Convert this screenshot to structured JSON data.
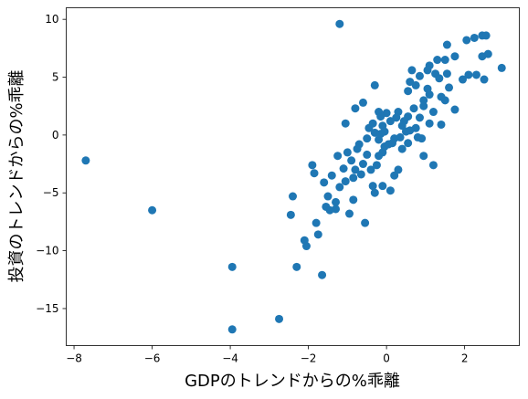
{
  "chart_data": {
    "type": "scatter",
    "xlabel": "GDPのトレンドからの%乖離",
    "ylabel": "投資のトレンドからの%乖離",
    "xlim": [
      -8.2,
      3.4
    ],
    "ylim": [
      -18.2,
      11.0
    ],
    "xticks": [
      -8,
      -6,
      -4,
      -2,
      0,
      2
    ],
    "yticks": [
      -15,
      -10,
      -5,
      0,
      5,
      10
    ],
    "x_tick_labels": [
      "−8",
      "−6",
      "−4",
      "−2",
      "0",
      "2"
    ],
    "y_tick_labels": [
      "−15",
      "−10",
      "−5",
      "0",
      "5",
      "10"
    ],
    "grid": false,
    "marker_color": "#1f77b4",
    "points": [
      [
        -7.7,
        -2.2
      ],
      [
        -6.0,
        -6.5
      ],
      [
        -3.95,
        -11.4
      ],
      [
        -3.95,
        -16.8
      ],
      [
        -2.75,
        -15.9
      ],
      [
        -2.3,
        -11.4
      ],
      [
        -1.65,
        -12.1
      ],
      [
        -1.2,
        9.6
      ],
      [
        2.95,
        5.8
      ],
      [
        2.6,
        7.0
      ],
      [
        2.45,
        8.6
      ],
      [
        2.55,
        8.6
      ],
      [
        2.25,
        8.4
      ],
      [
        2.05,
        8.2
      ],
      [
        1.75,
        6.8
      ],
      [
        1.55,
        7.8
      ],
      [
        1.5,
        6.5
      ],
      [
        1.3,
        6.5
      ],
      [
        1.1,
        6.0
      ],
      [
        1.25,
        5.3
      ],
      [
        1.05,
        5.6
      ],
      [
        0.85,
        5.1
      ],
      [
        0.6,
        4.6
      ],
      [
        0.75,
        4.3
      ],
      [
        1.35,
        4.9
      ],
      [
        1.1,
        3.5
      ],
      [
        0.95,
        3.0
      ],
      [
        1.5,
        3.0
      ],
      [
        1.75,
        2.2
      ],
      [
        0.85,
        1.5
      ],
      [
        1.1,
        1.0
      ],
      [
        0.75,
        0.6
      ],
      [
        0.55,
        1.6
      ],
      [
        0.45,
        1.2
      ],
      [
        0.3,
        2.0
      ],
      [
        0.0,
        1.9
      ],
      [
        -0.2,
        2.0
      ],
      [
        -0.1,
        0.8
      ],
      [
        -0.3,
        0.2
      ],
      [
        -0.5,
        -0.3
      ],
      [
        -0.6,
        2.8
      ],
      [
        -0.3,
        4.3
      ],
      [
        -0.8,
        2.3
      ],
      [
        -1.05,
        1.0
      ],
      [
        -1.0,
        -1.5
      ],
      [
        -1.25,
        -1.8
      ],
      [
        -0.9,
        -2.2
      ],
      [
        -0.8,
        -3.0
      ],
      [
        -0.6,
        -2.5
      ],
      [
        -0.4,
        -3.0
      ],
      [
        -0.25,
        -2.6
      ],
      [
        -0.1,
        -1.5
      ],
      [
        0.05,
        -0.8
      ],
      [
        0.2,
        -0.3
      ],
      [
        -0.1,
        -4.4
      ],
      [
        -0.35,
        -4.4
      ],
      [
        0.2,
        -3.5
      ],
      [
        0.3,
        -3.0
      ],
      [
        0.1,
        -4.8
      ],
      [
        -0.3,
        -5.0
      ],
      [
        -0.55,
        -7.6
      ],
      [
        -1.2,
        -4.5
      ],
      [
        -0.85,
        -5.6
      ],
      [
        -0.95,
        -6.8
      ],
      [
        -1.3,
        -6.4
      ],
      [
        -1.55,
        -6.2
      ],
      [
        -1.5,
        -5.3
      ],
      [
        -1.4,
        -3.5
      ],
      [
        -1.6,
        -4.1
      ],
      [
        -1.8,
        -7.6
      ],
      [
        -1.85,
        -3.3
      ],
      [
        -2.1,
        -9.1
      ],
      [
        -2.05,
        -9.6
      ],
      [
        -2.4,
        -5.3
      ],
      [
        -2.45,
        -6.9
      ],
      [
        -1.75,
        -8.6
      ],
      [
        -1.9,
        -2.6
      ],
      [
        -0.85,
        -3.7
      ],
      [
        0.95,
        -1.8
      ],
      [
        1.2,
        -2.6
      ],
      [
        0.8,
        -0.2
      ],
      [
        0.55,
        -0.7
      ],
      [
        0.4,
        -1.2
      ],
      [
        0.15,
        -0.7
      ],
      [
        -0.05,
        -1.0
      ],
      [
        -0.2,
        -1.8
      ],
      [
        0.6,
        0.4
      ],
      [
        0.9,
        -0.3
      ],
      [
        2.1,
        5.2
      ],
      [
        2.3,
        5.2
      ],
      [
        2.5,
        4.8
      ],
      [
        1.95,
        4.8
      ],
      [
        2.45,
        6.8
      ],
      [
        0.65,
        5.6
      ],
      [
        1.55,
        5.3
      ],
      [
        1.05,
        4.0
      ],
      [
        0.7,
        2.3
      ],
      [
        1.2,
        2.0
      ],
      [
        0.4,
        0.8
      ],
      [
        0.25,
        1.5
      ],
      [
        -0.45,
        0.6
      ],
      [
        -0.7,
        -0.8
      ],
      [
        -1.1,
        -2.9
      ],
      [
        -0.75,
        -1.2
      ],
      [
        -0.5,
        -1.7
      ],
      [
        -0.2,
        -0.4
      ],
      [
        -0.05,
        0.3
      ],
      [
        0.1,
        1.2
      ],
      [
        -0.35,
        1.0
      ],
      [
        -0.15,
        1.6
      ],
      [
        0.35,
        -0.2
      ],
      [
        0.5,
        0.3
      ],
      [
        1.4,
        0.9
      ],
      [
        0.95,
        2.5
      ],
      [
        1.6,
        4.1
      ],
      [
        1.4,
        3.3
      ],
      [
        0.55,
        3.8
      ],
      [
        -0.15,
        0.1
      ],
      [
        -0.65,
        -3.4
      ],
      [
        -1.05,
        -4.0
      ],
      [
        -1.3,
        -5.8
      ],
      [
        -1.45,
        -6.5
      ]
    ]
  }
}
